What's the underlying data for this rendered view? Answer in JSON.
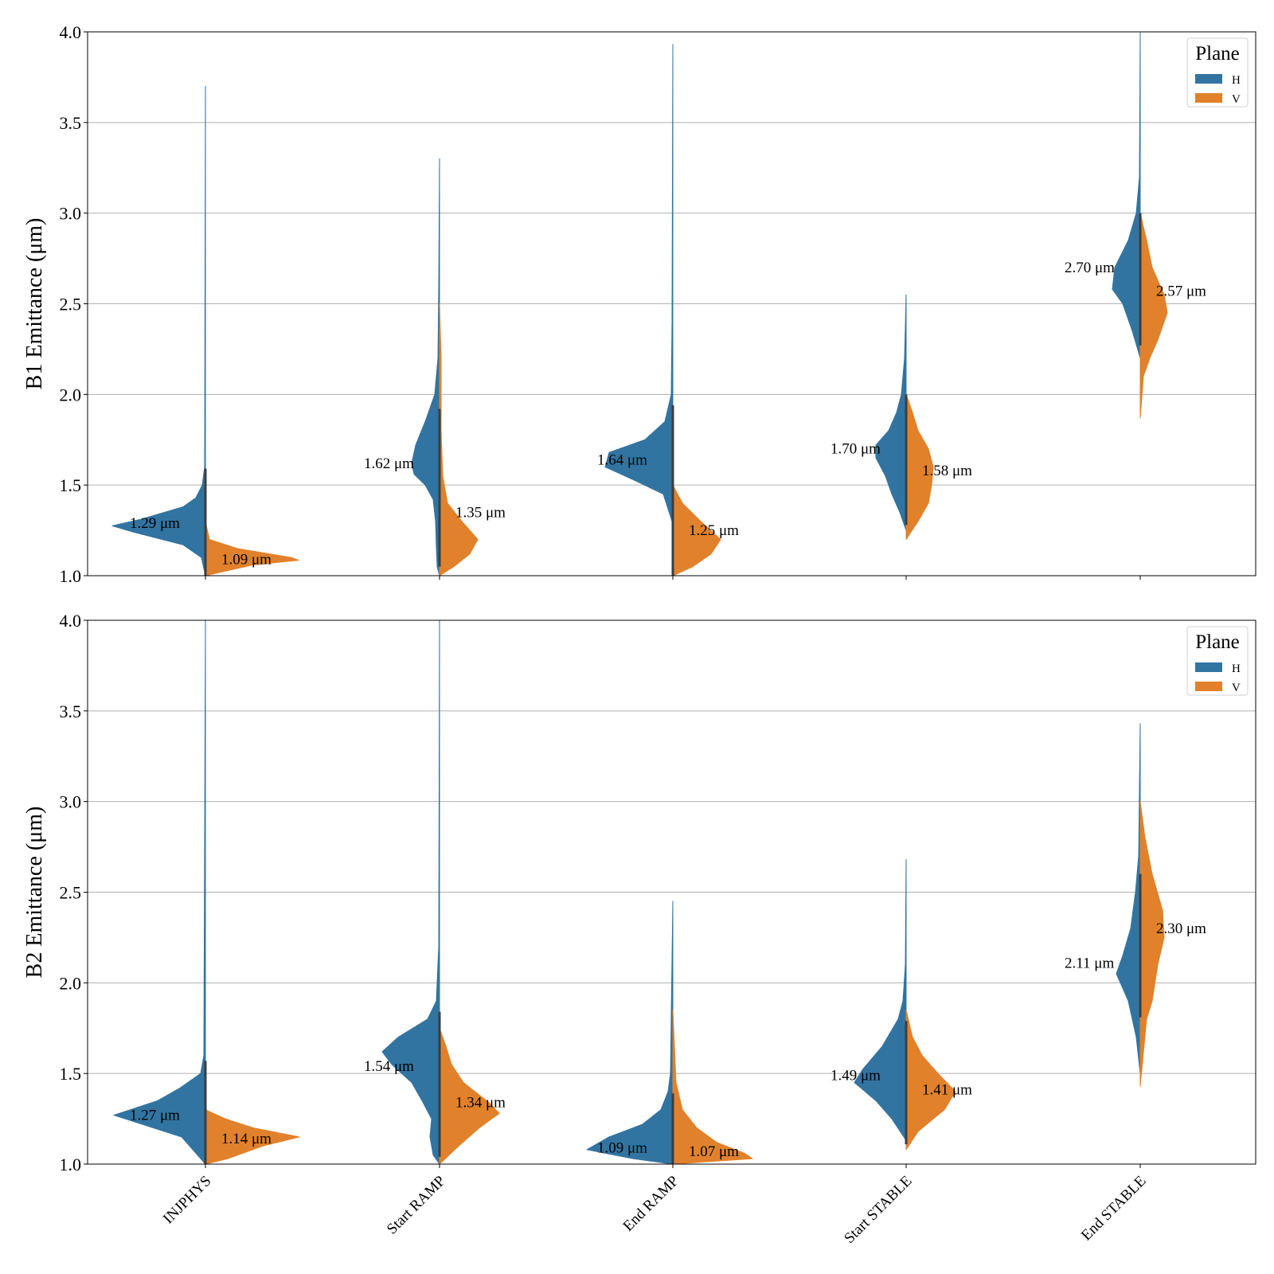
{
  "colors": {
    "H": "#3274a1",
    "V": "#e1812c"
  },
  "legend": {
    "title": "Plane",
    "entries": [
      "H",
      "V"
    ],
    "placement": "upper right"
  },
  "chart_data": [
    {
      "type": "split-violin",
      "ylabel": "B1 Emittance (μm)",
      "ylim": [
        1.0,
        4.0
      ],
      "yticks": [
        "1.0",
        "1.5",
        "2.0",
        "2.5",
        "3.0",
        "3.5",
        "4.0"
      ],
      "grid": true,
      "categories": [
        "INJPHYS",
        "Start RAMP",
        "End RAMP",
        "Start STABLE",
        "End STABLE"
      ],
      "series": [
        {
          "name": "H",
          "medians": [
            1.29,
            1.62,
            1.64,
            1.7,
            2.7
          ],
          "labels": [
            "1.29 μm",
            "1.62 μm",
            "1.64 μm",
            "1.70 μm",
            "2.70 μm"
          ],
          "range_min": [
            1.0,
            1.0,
            1.0,
            1.25,
            2.2
          ],
          "range_max": [
            3.7,
            3.3,
            3.93,
            2.55,
            4.0
          ]
        },
        {
          "name": "V",
          "medians": [
            1.09,
            1.35,
            1.25,
            1.58,
            2.57
          ],
          "labels": [
            "1.09 μm",
            "1.35 μm",
            "1.25 μm",
            "1.58 μm",
            "2.57 μm"
          ],
          "range_min": [
            1.0,
            1.0,
            1.0,
            1.2,
            1.87
          ],
          "range_max": [
            1.3,
            2.5,
            1.5,
            2.0,
            3.0
          ]
        }
      ]
    },
    {
      "type": "split-violin",
      "ylabel": "B2 Emittance (μm)",
      "ylim": [
        1.0,
        4.0
      ],
      "yticks": [
        "1.0",
        "1.5",
        "2.0",
        "2.5",
        "3.0",
        "3.5",
        "4.0"
      ],
      "grid": true,
      "categories": [
        "INJPHYS",
        "Start RAMP",
        "End RAMP",
        "Start STABLE",
        "End STABLE"
      ],
      "series": [
        {
          "name": "H",
          "medians": [
            1.27,
            1.54,
            1.09,
            1.49,
            2.11
          ],
          "labels": [
            "1.27 μm",
            "1.54 μm",
            "1.09 μm",
            "1.49 μm",
            "2.11 μm"
          ],
          "range_min": [
            1.0,
            1.0,
            1.0,
            1.13,
            1.5
          ],
          "range_max": [
            4.0,
            4.0,
            2.45,
            2.68,
            3.43
          ]
        },
        {
          "name": "V",
          "medians": [
            1.14,
            1.34,
            1.07,
            1.41,
            2.3
          ],
          "labels": [
            "1.14 μm",
            "1.34 μm",
            "1.07 μm",
            "1.41 μm",
            "2.30 μm"
          ],
          "range_min": [
            1.0,
            1.0,
            1.0,
            1.08,
            1.43
          ],
          "range_max": [
            1.3,
            1.75,
            1.85,
            1.85,
            3.0
          ]
        }
      ]
    }
  ]
}
